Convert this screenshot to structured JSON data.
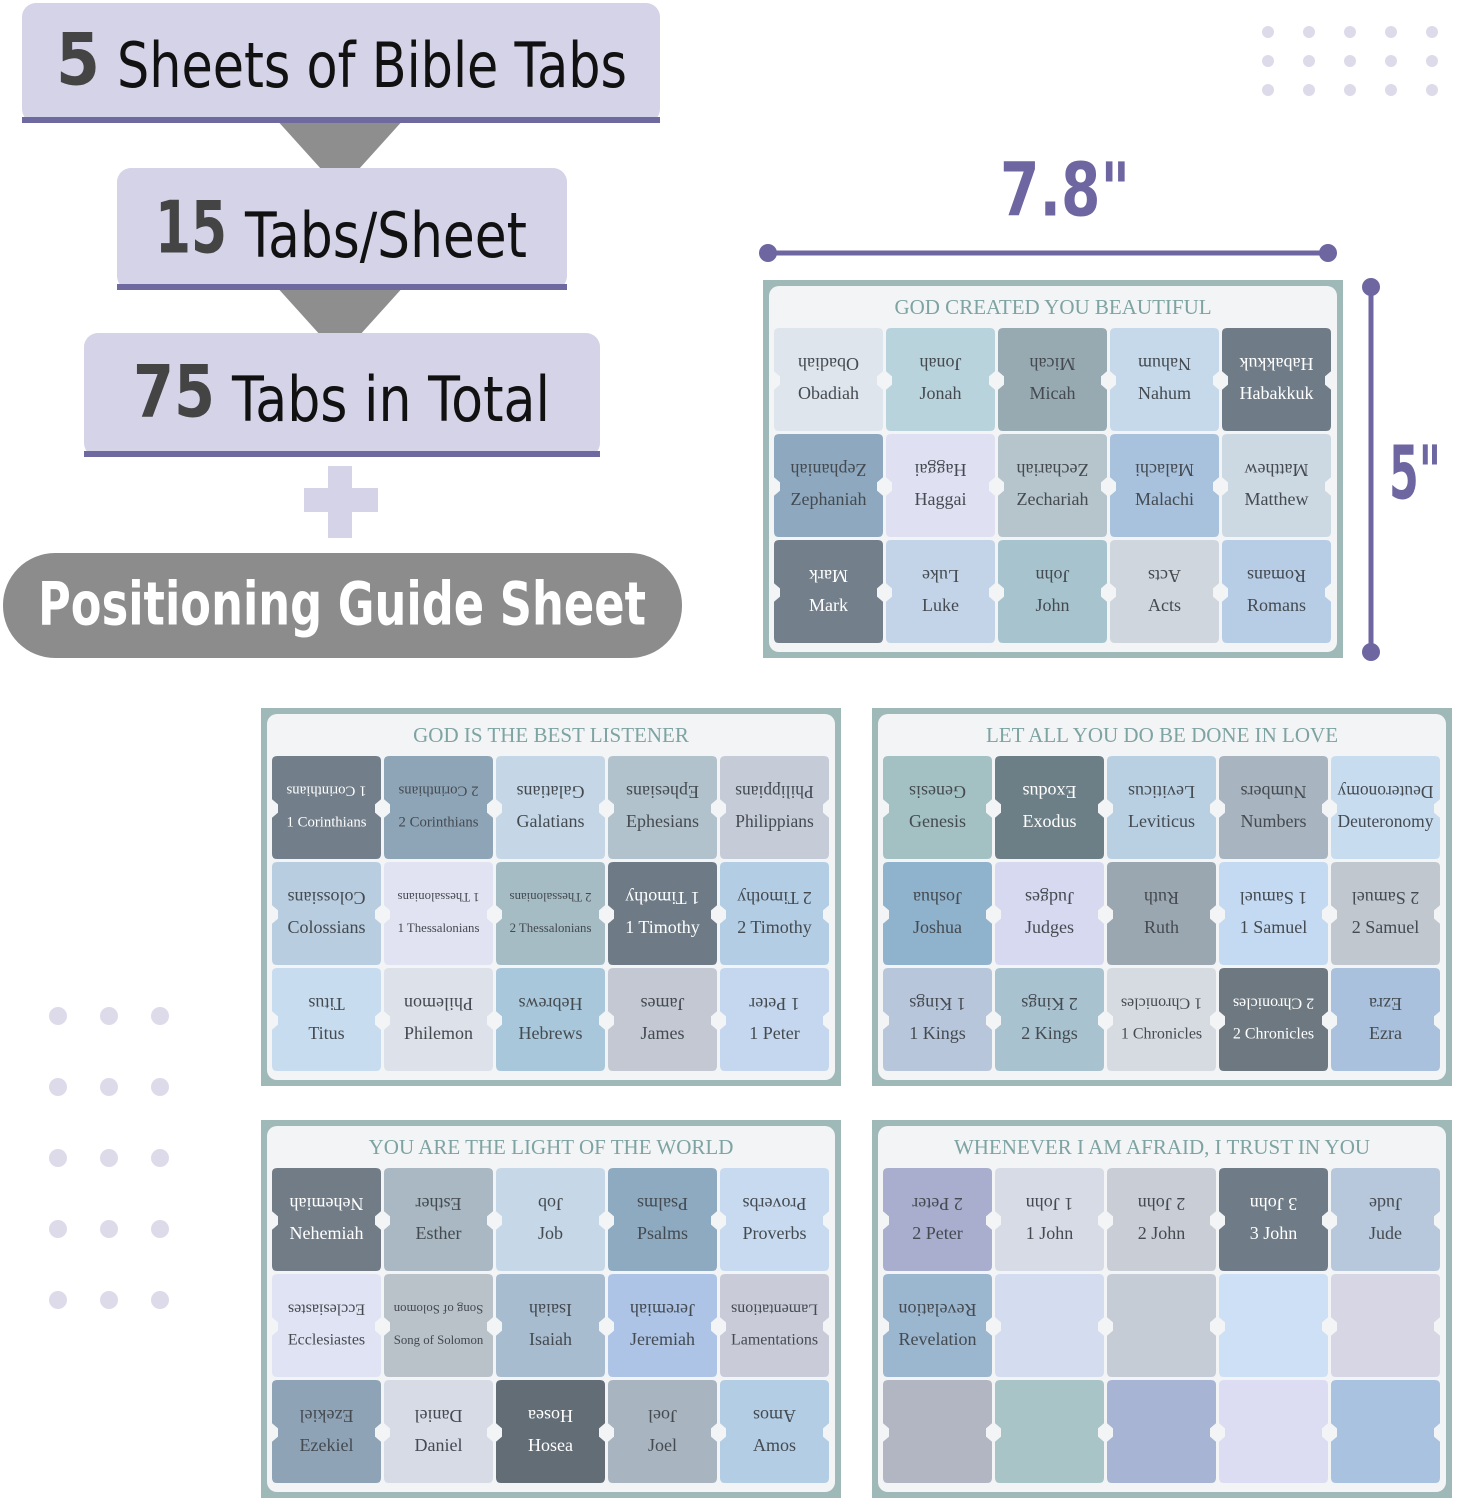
{
  "header": {
    "sheets_count": "5",
    "sheets_text": "Sheets of Bible Tabs",
    "tabs_per_sheet": "15",
    "tabs_per_sheet_text": "Tabs/Sheet",
    "total_tabs": "75",
    "total_tabs_text": "Tabs in Total",
    "extra": "Positioning Guide Sheet"
  },
  "dimensions": {
    "width": "7.8\"",
    "height": "5\""
  },
  "sheets": [
    {
      "title": "GOD CREATED YOU BEAUTIFUL",
      "tabs": [
        "Obadiah",
        "Jonah",
        "Micah",
        "Nahum",
        "Habakkuk",
        "Zephaniah",
        "Haggai",
        "Zechariah",
        "Malachi",
        "Matthew",
        "Mark",
        "Luke",
        "John",
        "Acts",
        "Romans"
      ]
    },
    {
      "title": "GOD IS THE BEST LISTENER",
      "tabs": [
        "1 Corinthians",
        "2 Corinthians",
        "Galatians",
        "Ephesians",
        "Philippians",
        "Colossians",
        "1 Thessalonians",
        "2 Thessalonians",
        "1 Timothy",
        "2 Timothy",
        "Titus",
        "Philemon",
        "Hebrews",
        "James",
        "1 Peter"
      ]
    },
    {
      "title": "LET ALL YOU DO BE DONE IN LOVE",
      "tabs": [
        "Genesis",
        "Exodus",
        "Leviticus",
        "Numbers",
        "Deuteronomy",
        "Joshua",
        "Judges",
        "Ruth",
        "1 Samuel",
        "2 Samuel",
        "1 Kings",
        "2 Kings",
        "1 Chronicles",
        "2 Chronicles",
        "Ezra"
      ]
    },
    {
      "title": "YOU ARE THE LIGHT OF THE WORLD",
      "tabs": [
        "Nehemiah",
        "Esther",
        "Job",
        "Psalms",
        "Proverbs",
        "Ecclesiastes",
        "Song of Solomon",
        "Isaiah",
        "Jeremiah",
        "Lamentations",
        "Ezekiel",
        "Daniel",
        "Hosea",
        "Joel",
        "Amos"
      ]
    },
    {
      "title": "WHENEVER I AM AFRAID, I TRUST IN YOU",
      "tabs": [
        "2 Peter",
        "1 John",
        "2 John",
        "3 John",
        "Jude",
        "Revelation"
      ]
    }
  ]
}
